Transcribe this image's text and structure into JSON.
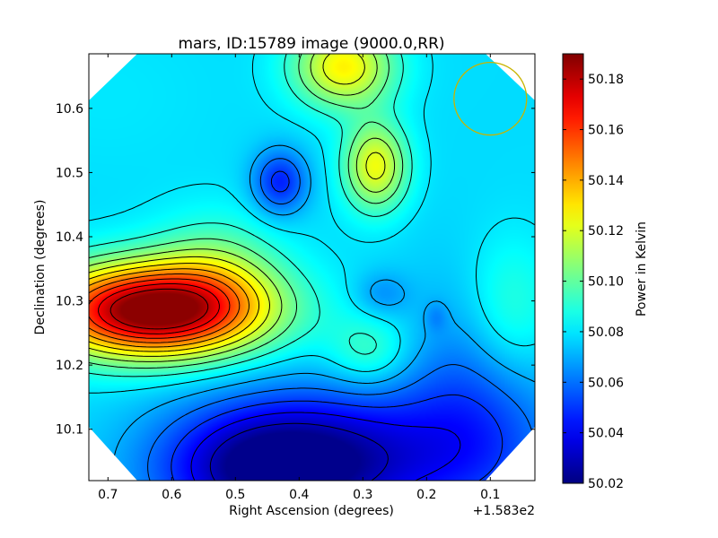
{
  "chart_data": {
    "type": "heatmap",
    "title": "mars, ID:15789 image (9000.0,RR)",
    "xlabel": "Right Ascension (degrees)",
    "ylabel": "Declination (degrees)",
    "x_offset_label": "+1.583e2",
    "xlim": [
      0.73,
      0.03
    ],
    "ylim": [
      10.02,
      10.685
    ],
    "x_ticks": [
      "0.7",
      "0.6",
      "0.5",
      "0.4",
      "0.3",
      "0.2",
      "0.1"
    ],
    "y_ticks": [
      "10.1",
      "10.2",
      "10.3",
      "10.4",
      "10.5",
      "10.6"
    ],
    "colorbar": {
      "label": "Power in Kelvin",
      "range": [
        50.02,
        50.19
      ],
      "ticks": [
        "50.02",
        "50.04",
        "50.06",
        "50.08",
        "50.10",
        "50.12",
        "50.14",
        "50.16",
        "50.18"
      ],
      "colormap": "jet"
    },
    "features": [
      {
        "kind": "peak",
        "ra": 0.63,
        "dec": 10.28,
        "value": 50.187
      },
      {
        "kind": "local-max",
        "ra": 0.33,
        "dec": 10.66,
        "value": 50.128
      },
      {
        "kind": "local-max",
        "ra": 0.28,
        "dec": 10.51,
        "value": 50.127
      },
      {
        "kind": "local-min",
        "ra": 0.43,
        "dec": 10.485,
        "value": 50.06
      },
      {
        "kind": "local-min",
        "ra": 0.46,
        "dec": 10.04,
        "value": 50.022
      },
      {
        "kind": "local-min",
        "ra": 0.27,
        "dec": 10.31,
        "value": 50.066
      },
      {
        "kind": "local-min",
        "ra": 0.14,
        "dec": 10.27,
        "value": 50.066
      },
      {
        "kind": "local-max",
        "ra": 0.29,
        "dec": 10.22,
        "value": 50.083
      },
      {
        "kind": "local-max",
        "ra": 0.07,
        "dec": 10.28,
        "value": 50.082
      }
    ],
    "beam_circle": {
      "ra": 0.1,
      "dec": 10.615,
      "radius_deg": 0.057,
      "color": "#c8b400"
    },
    "contour_color": "#000000",
    "grid": false,
    "legend": "colorbar-right"
  }
}
